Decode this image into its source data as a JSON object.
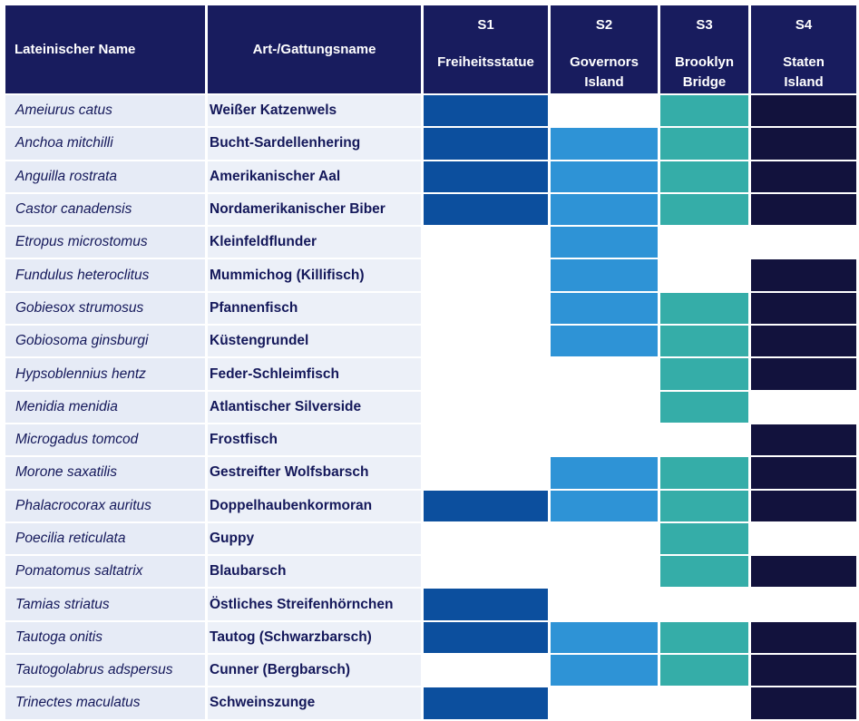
{
  "header": {
    "latin": "Lateinischer Name",
    "common": "Art-/Gattungsname",
    "sites": [
      {
        "code": "S1",
        "line1": "Freiheitsstatue",
        "line2": ""
      },
      {
        "code": "S2",
        "line1": "Governors",
        "line2": "Island"
      },
      {
        "code": "S3",
        "line1": "Brooklyn",
        "line2": "Bridge"
      },
      {
        "code": "S4",
        "line1": "Staten",
        "line2": "Island"
      }
    ]
  },
  "colors": {
    "S1": "#0c4f9e",
    "S2": "#2e93d6",
    "S3": "#35ada8",
    "S4": "#12123d",
    "header_bg": "#181c5e",
    "row_bg": "#e6ebf6"
  },
  "rows": [
    {
      "latin": "Ameiurus catus",
      "common": "Weißer Katzenwels",
      "presence": [
        1,
        0,
        1,
        1
      ]
    },
    {
      "latin": "Anchoa mitchilli",
      "common": "Bucht-Sardellenhering",
      "presence": [
        1,
        1,
        1,
        1
      ]
    },
    {
      "latin": "Anguilla rostrata",
      "common": "Amerikanischer Aal",
      "presence": [
        1,
        1,
        1,
        1
      ]
    },
    {
      "latin": "Castor canadensis",
      "common": "Nordamerikanischer Biber",
      "presence": [
        1,
        1,
        1,
        1
      ]
    },
    {
      "latin": "Etropus microstomus",
      "common": "Kleinfeldflunder",
      "presence": [
        0,
        1,
        0,
        0
      ]
    },
    {
      "latin": "Fundulus heteroclitus",
      "common": "Mummichog (Killifisch)",
      "presence": [
        0,
        1,
        0,
        1
      ]
    },
    {
      "latin": "Gobiesox strumosus",
      "common": "Pfannenfisch",
      "presence": [
        0,
        1,
        1,
        1
      ]
    },
    {
      "latin": "Gobiosoma ginsburgi",
      "common": "Küstengrundel",
      "presence": [
        0,
        1,
        1,
        1
      ]
    },
    {
      "latin": "Hypsoblennius hentz",
      "common": "Feder-Schleimfisch",
      "presence": [
        0,
        0,
        1,
        1
      ]
    },
    {
      "latin": "Menidia menidia",
      "common": "Atlantischer Silverside",
      "presence": [
        0,
        0,
        1,
        0
      ]
    },
    {
      "latin": "Microgadus tomcod",
      "common": "Frostfisch",
      "presence": [
        0,
        0,
        0,
        1
      ]
    },
    {
      "latin": "Morone saxatilis",
      "common": "Gestreifter Wolfsbarsch",
      "presence": [
        0,
        1,
        1,
        1
      ]
    },
    {
      "latin": "Phalacrocorax auritus",
      "common": "Doppelhaubenkormoran",
      "presence": [
        1,
        1,
        1,
        1
      ]
    },
    {
      "latin": "Poecilia reticulata",
      "common": "Guppy",
      "presence": [
        0,
        0,
        1,
        0
      ]
    },
    {
      "latin": "Pomatomus saltatrix",
      "common": "Blaubarsch",
      "presence": [
        0,
        0,
        1,
        1
      ]
    },
    {
      "latin": "Tamias striatus",
      "common": "Östliches Streifenhörnchen",
      "presence": [
        1,
        0,
        0,
        0
      ]
    },
    {
      "latin": "Tautoga onitis",
      "common": "Tautog (Schwarzbarsch)",
      "presence": [
        1,
        1,
        1,
        1
      ]
    },
    {
      "latin": "Tautogolabrus adspersus",
      "common": "Cunner (Bergbarsch)",
      "presence": [
        0,
        1,
        1,
        1
      ]
    },
    {
      "latin": "Trinectes maculatus",
      "common": "Schweinszunge",
      "presence": [
        1,
        0,
        0,
        1
      ]
    }
  ]
}
